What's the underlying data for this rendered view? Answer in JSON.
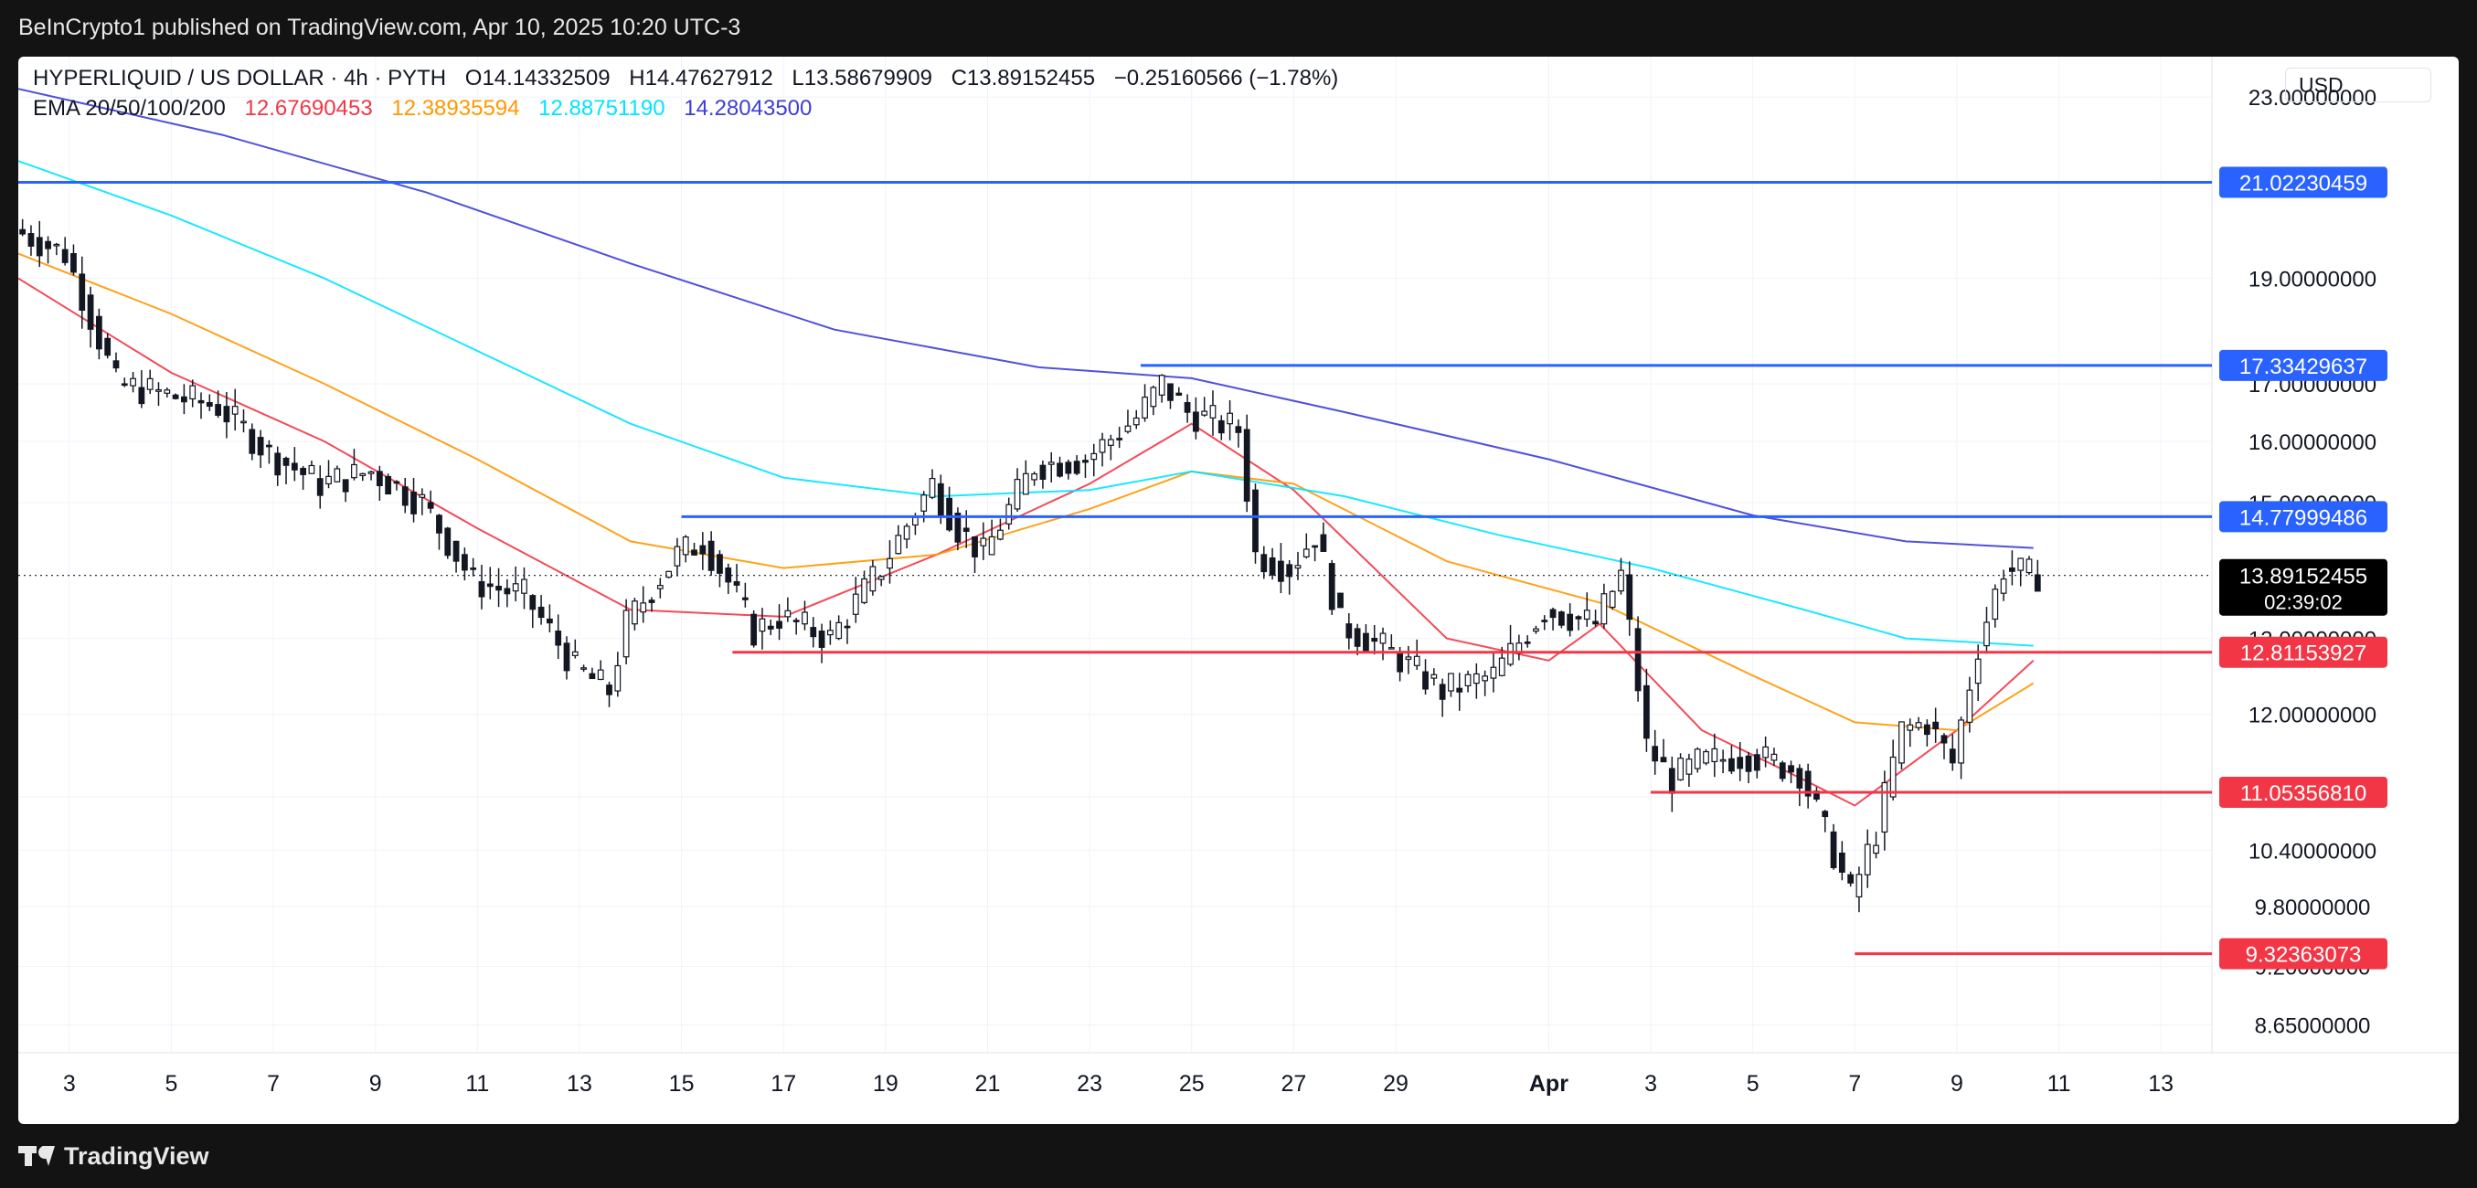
{
  "header": {
    "published": "BeInCrypto1 published on TradingView.com, Apr 10, 2025 10:20 UTC-3"
  },
  "footer": {
    "brand": "TradingView"
  },
  "legend": {
    "symbol": "HYPERLIQUID / US DOLLAR · 4h · PYTH",
    "open": "O14.14332509",
    "high": "H14.47627912",
    "low": "L13.58679909",
    "close": "C13.89152455",
    "change": "−0.25160566 (−1.78%)",
    "ema_label": "EMA 20/50/100/200",
    "ema_values": [
      "12.67690453",
      "12.38935594",
      "12.88751190",
      "14.28043500"
    ]
  },
  "currency": "USD",
  "countdown": "02:39:02",
  "colors": {
    "ema20": "#f23645",
    "ema50": "#ff9800",
    "ema100": "#00e5ff",
    "ema200": "#3d3dd8",
    "resistance": "#2962ff",
    "support": "#f23645",
    "candle": "#131722",
    "grid": "#f0f3fa"
  },
  "chart_data": {
    "type": "candlestick",
    "x_range": [
      "2025-03-02",
      "2025-04-14"
    ],
    "y_range": [
      8.4,
      24.0
    ],
    "y_scale": "log",
    "x_tick_labels": [
      "3",
      "5",
      "7",
      "9",
      "11",
      "13",
      "15",
      "17",
      "19",
      "21",
      "23",
      "25",
      "27",
      "29",
      "Apr",
      "3",
      "5",
      "7",
      "9",
      "11",
      "13"
    ],
    "y_tick_labels": [
      "23.00000000",
      "19.00000000",
      "17.00000000",
      "16.00000000",
      "15.00000000",
      "13.00000000",
      "12.00000000",
      "11.00000000",
      "10.40000000",
      "9.80000000",
      "9.20000000",
      "8.65000000"
    ],
    "last_price": "13.89152455",
    "horizontal_levels": [
      {
        "label": "21.02230459",
        "kind": "resistance",
        "from": "2025-03-02"
      },
      {
        "label": "17.33429637",
        "kind": "resistance",
        "from": "2025-03-24"
      },
      {
        "label": "14.77999486",
        "kind": "resistance",
        "from": "2025-03-15"
      },
      {
        "label": "12.81153927",
        "kind": "support",
        "from": "2025-03-16"
      },
      {
        "label": "11.05356810",
        "kind": "support",
        "from": "2025-04-03"
      },
      {
        "label": "9.32363073",
        "kind": "support",
        "from": "2025-04-07"
      }
    ],
    "price_path": [
      [
        "2025-03-02",
        20.0
      ],
      [
        "2025-03-03",
        19.5
      ],
      [
        "2025-03-04",
        17.0
      ],
      [
        "2025-03-05",
        16.8
      ],
      [
        "2025-03-06",
        16.6
      ],
      [
        "2025-03-07",
        15.8
      ],
      [
        "2025-03-08",
        15.3
      ],
      [
        "2025-03-09",
        15.5
      ],
      [
        "2025-03-10",
        15.0
      ],
      [
        "2025-03-11",
        13.8
      ],
      [
        "2025-03-12",
        13.6
      ],
      [
        "2025-03-13",
        12.6
      ],
      [
        "2025-03-13T16:00",
        12.3
      ],
      [
        "2025-03-14",
        13.2
      ],
      [
        "2025-03-15",
        14.2
      ],
      [
        "2025-03-15T12:00",
        14.4
      ],
      [
        "2025-03-16",
        13.8
      ],
      [
        "2025-03-16T12:00",
        13.1
      ],
      [
        "2025-03-17",
        13.3
      ],
      [
        "2025-03-18",
        13.0
      ],
      [
        "2025-03-19",
        14.0
      ],
      [
        "2025-03-20",
        15.3
      ],
      [
        "2025-03-20T12:00",
        14.6
      ],
      [
        "2025-03-21",
        14.2
      ],
      [
        "2025-03-22",
        15.6
      ],
      [
        "2025-03-23",
        15.7
      ],
      [
        "2025-03-24",
        16.4
      ],
      [
        "2025-03-24T12:00",
        17.0
      ],
      [
        "2025-03-25",
        16.5
      ],
      [
        "2025-03-26",
        16.2
      ],
      [
        "2025-03-26T08:00",
        14.2
      ],
      [
        "2025-03-27",
        14.0
      ],
      [
        "2025-03-27T12:00",
        14.5
      ],
      [
        "2025-03-28",
        13.2
      ],
      [
        "2025-03-29",
        12.8
      ],
      [
        "2025-03-30",
        12.3
      ],
      [
        "2025-03-31",
        12.5
      ],
      [
        "2025-04-01",
        13.4
      ],
      [
        "2025-04-02",
        13.2
      ],
      [
        "2025-04-02T12:00",
        13.9
      ],
      [
        "2025-04-03",
        11.6
      ],
      [
        "2025-04-03T12:00",
        11.2
      ],
      [
        "2025-04-04",
        11.4
      ],
      [
        "2025-04-05",
        11.5
      ],
      [
        "2025-04-06",
        11.3
      ],
      [
        "2025-04-06T12:00",
        10.6
      ],
      [
        "2025-04-07",
        9.9
      ],
      [
        "2025-04-07T12:00",
        10.6
      ],
      [
        "2025-04-08",
        11.8
      ],
      [
        "2025-04-08T12:00",
        11.9
      ],
      [
        "2025-04-09",
        11.4
      ],
      [
        "2025-04-09T12:00",
        12.9
      ],
      [
        "2025-04-10",
        14.0
      ],
      [
        "2025-04-10T12:00",
        13.9
      ]
    ],
    "ema_series": [
      {
        "name": "EMA 20",
        "points": [
          [
            "2025-03-02",
            19.0
          ],
          [
            "2025-03-05",
            17.2
          ],
          [
            "2025-03-08",
            16.0
          ],
          [
            "2025-03-11",
            14.6
          ],
          [
            "2025-03-14",
            13.4
          ],
          [
            "2025-03-17",
            13.3
          ],
          [
            "2025-03-20",
            14.2
          ],
          [
            "2025-03-23",
            15.3
          ],
          [
            "2025-03-25",
            16.3
          ],
          [
            "2025-03-27",
            15.2
          ],
          [
            "2025-03-30",
            13.0
          ],
          [
            "2025-04-01",
            12.7
          ],
          [
            "2025-04-02",
            13.2
          ],
          [
            "2025-04-04",
            11.8
          ],
          [
            "2025-04-06",
            11.2
          ],
          [
            "2025-04-07",
            10.9
          ],
          [
            "2025-04-09",
            11.8
          ],
          [
            "2025-04-10T12:00",
            12.7
          ]
        ]
      },
      {
        "name": "EMA 50",
        "points": [
          [
            "2025-03-02",
            19.5
          ],
          [
            "2025-03-05",
            18.3
          ],
          [
            "2025-03-08",
            17.0
          ],
          [
            "2025-03-11",
            15.7
          ],
          [
            "2025-03-14",
            14.4
          ],
          [
            "2025-03-17",
            14.0
          ],
          [
            "2025-03-20",
            14.2
          ],
          [
            "2025-03-23",
            14.9
          ],
          [
            "2025-03-25",
            15.5
          ],
          [
            "2025-03-27",
            15.3
          ],
          [
            "2025-03-30",
            14.1
          ],
          [
            "2025-04-02",
            13.5
          ],
          [
            "2025-04-05",
            12.5
          ],
          [
            "2025-04-07",
            11.9
          ],
          [
            "2025-04-09",
            11.8
          ],
          [
            "2025-04-10T12:00",
            12.4
          ]
        ]
      },
      {
        "name": "EMA 100",
        "points": [
          [
            "2025-03-02",
            21.5
          ],
          [
            "2025-03-05",
            20.3
          ],
          [
            "2025-03-08",
            19.0
          ],
          [
            "2025-03-11",
            17.6
          ],
          [
            "2025-03-14",
            16.3
          ],
          [
            "2025-03-17",
            15.4
          ],
          [
            "2025-03-20",
            15.1
          ],
          [
            "2025-03-23",
            15.2
          ],
          [
            "2025-03-25",
            15.5
          ],
          [
            "2025-03-28",
            15.1
          ],
          [
            "2025-03-31",
            14.5
          ],
          [
            "2025-04-03",
            14.0
          ],
          [
            "2025-04-06",
            13.4
          ],
          [
            "2025-04-08",
            13.0
          ],
          [
            "2025-04-10T12:00",
            12.9
          ]
        ]
      },
      {
        "name": "EMA 200",
        "points": [
          [
            "2025-03-02",
            23.2
          ],
          [
            "2025-03-06",
            22.1
          ],
          [
            "2025-03-10",
            20.8
          ],
          [
            "2025-03-14",
            19.3
          ],
          [
            "2025-03-18",
            18.0
          ],
          [
            "2025-03-22",
            17.3
          ],
          [
            "2025-03-25",
            17.1
          ],
          [
            "2025-03-28",
            16.5
          ],
          [
            "2025-04-01",
            15.7
          ],
          [
            "2025-04-05",
            14.8
          ],
          [
            "2025-04-08",
            14.4
          ],
          [
            "2025-04-10T12:00",
            14.3
          ]
        ]
      }
    ]
  }
}
